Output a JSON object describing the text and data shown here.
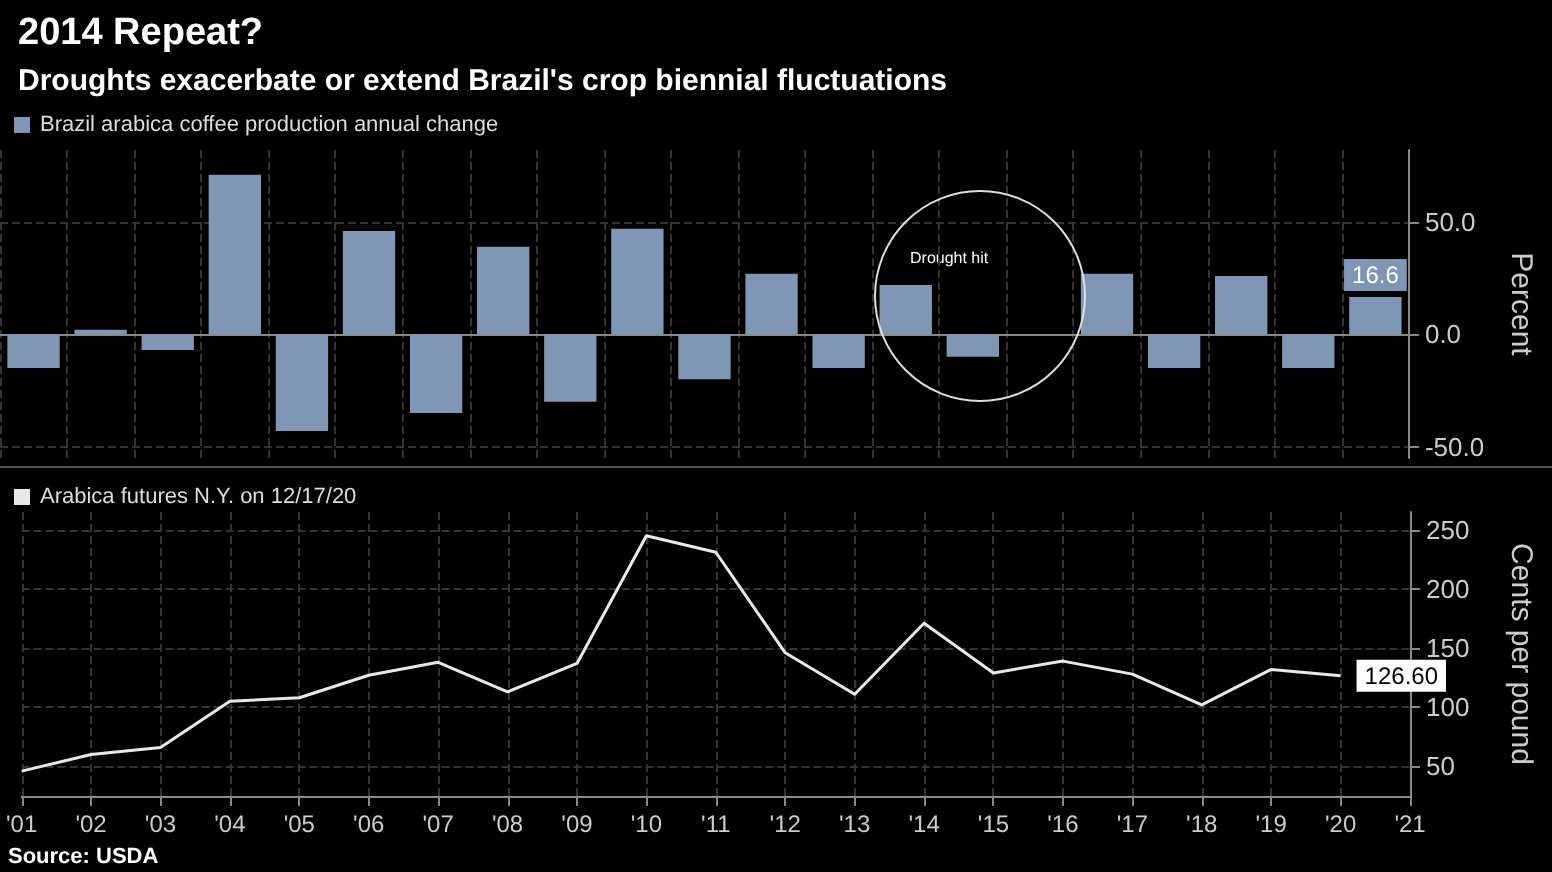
{
  "chart_data": [
    {
      "type": "bar",
      "title": "2014 Repeat?",
      "subtitle": "Droughts exacerbate or extend Brazil's crop biennial fluctuations",
      "ylabel": "Percent",
      "categories": [
        null,
        null,
        null,
        null,
        null,
        null,
        null,
        null,
        null,
        null,
        null,
        null,
        null,
        null,
        null,
        null,
        null,
        null,
        null,
        null,
        null
      ],
      "series": [
        {
          "name": "Brazil arabica coffee production annual change",
          "color": "#8096b5",
          "values": [
            -15,
            2,
            -7,
            71,
            -43,
            46,
            -35,
            39,
            -30,
            47,
            -20,
            27,
            -15,
            22,
            -10,
            null,
            27,
            -15,
            26,
            -15,
            16.6
          ],
          "value_labels": [
            null,
            null,
            null,
            null,
            null,
            null,
            null,
            null,
            null,
            null,
            null,
            null,
            null,
            null,
            null,
            null,
            null,
            null,
            null,
            null,
            "16.6"
          ]
        }
      ],
      "ylim": [
        -55,
        82
      ],
      "yticks": [
        {
          "value": -50,
          "label": "-50.0"
        },
        {
          "value": 0,
          "label": "0.0"
        },
        {
          "value": 50,
          "label": "50.0"
        }
      ],
      "grid": true,
      "legend": "top left",
      "tick_labels": "y",
      "annotations": [
        "Drought hit"
      ]
    },
    {
      "type": "line",
      "ylabel": "Cents per pound",
      "categories": [
        "'01",
        "'02",
        "'03",
        "'04",
        "'05",
        "'06",
        "'07",
        "'08",
        "'09",
        "'10",
        "'11",
        "'12",
        "'13",
        "'14",
        "'15",
        "'16",
        "'17",
        "'18",
        "'19",
        "'20",
        "'21"
      ],
      "series": [
        {
          "name": "Arabica futures N.Y. on 12/17/20",
          "color": "#e8e8e8",
          "values": [
            46,
            60,
            66,
            105,
            108,
            127,
            138,
            113,
            137,
            245,
            231,
            146,
            111,
            171,
            129,
            139,
            128,
            102,
            132,
            126.6,
            null
          ],
          "value_labels": [
            null,
            null,
            null,
            null,
            null,
            null,
            null,
            null,
            null,
            null,
            null,
            null,
            null,
            null,
            null,
            null,
            null,
            null,
            null,
            "126.60",
            null
          ]
        }
      ],
      "ylim": [
        25,
        265
      ],
      "yticks": [
        50,
        100,
        150,
        200,
        250
      ],
      "grid": true,
      "legend": "top left",
      "marker": "none",
      "annotations": [
        "Source: USDA"
      ]
    }
  ]
}
